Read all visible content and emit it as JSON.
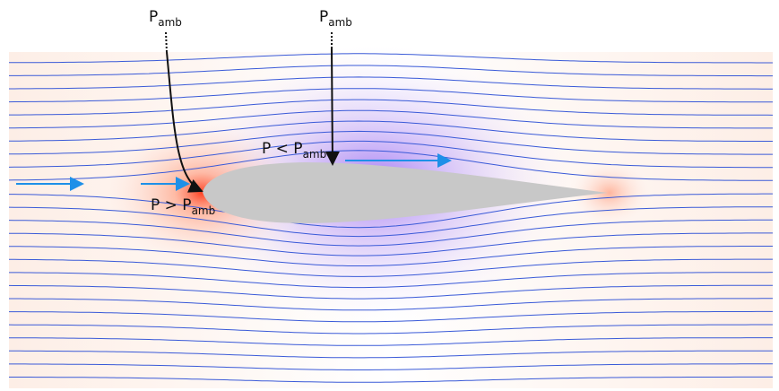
{
  "labels": [
    {
      "main": "P",
      "sub": "amb"
    },
    {
      "main": "P",
      "sub": "amb"
    },
    {
      "main": "P < P",
      "sub": "amb"
    },
    {
      "main": "P > P",
      "sub": "amb"
    }
  ]
}
